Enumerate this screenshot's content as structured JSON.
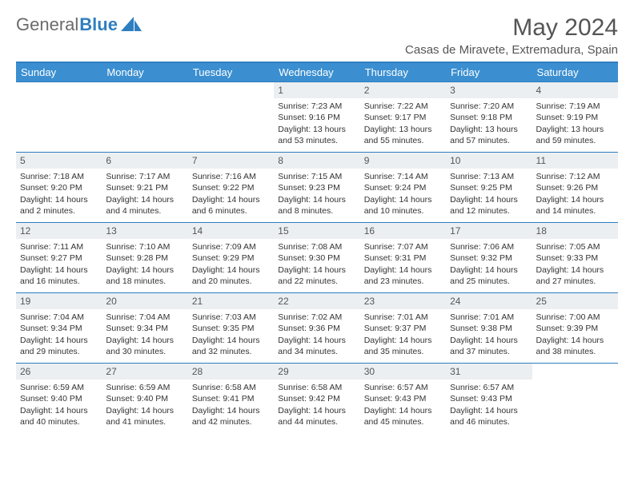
{
  "brand": {
    "part1": "General",
    "part2": "Blue"
  },
  "title": {
    "month": "May 2024",
    "location": "Casas de Miravete, Extremadura, Spain"
  },
  "colors": {
    "header_bg": "#3b8fd0",
    "border": "#2f7ec0",
    "daynum_bg": "#eceff2",
    "text": "#333333",
    "logo_gray": "#6b6b6b"
  },
  "weekdays": [
    "Sunday",
    "Monday",
    "Tuesday",
    "Wednesday",
    "Thursday",
    "Friday",
    "Saturday"
  ],
  "weeks": [
    [
      null,
      null,
      null,
      {
        "d": "1",
        "sr": "7:23 AM",
        "ss": "9:16 PM",
        "dl": "13 hours and 53 minutes."
      },
      {
        "d": "2",
        "sr": "7:22 AM",
        "ss": "9:17 PM",
        "dl": "13 hours and 55 minutes."
      },
      {
        "d": "3",
        "sr": "7:20 AM",
        "ss": "9:18 PM",
        "dl": "13 hours and 57 minutes."
      },
      {
        "d": "4",
        "sr": "7:19 AM",
        "ss": "9:19 PM",
        "dl": "13 hours and 59 minutes."
      }
    ],
    [
      {
        "d": "5",
        "sr": "7:18 AM",
        "ss": "9:20 PM",
        "dl": "14 hours and 2 minutes."
      },
      {
        "d": "6",
        "sr": "7:17 AM",
        "ss": "9:21 PM",
        "dl": "14 hours and 4 minutes."
      },
      {
        "d": "7",
        "sr": "7:16 AM",
        "ss": "9:22 PM",
        "dl": "14 hours and 6 minutes."
      },
      {
        "d": "8",
        "sr": "7:15 AM",
        "ss": "9:23 PM",
        "dl": "14 hours and 8 minutes."
      },
      {
        "d": "9",
        "sr": "7:14 AM",
        "ss": "9:24 PM",
        "dl": "14 hours and 10 minutes."
      },
      {
        "d": "10",
        "sr": "7:13 AM",
        "ss": "9:25 PM",
        "dl": "14 hours and 12 minutes."
      },
      {
        "d": "11",
        "sr": "7:12 AM",
        "ss": "9:26 PM",
        "dl": "14 hours and 14 minutes."
      }
    ],
    [
      {
        "d": "12",
        "sr": "7:11 AM",
        "ss": "9:27 PM",
        "dl": "14 hours and 16 minutes."
      },
      {
        "d": "13",
        "sr": "7:10 AM",
        "ss": "9:28 PM",
        "dl": "14 hours and 18 minutes."
      },
      {
        "d": "14",
        "sr": "7:09 AM",
        "ss": "9:29 PM",
        "dl": "14 hours and 20 minutes."
      },
      {
        "d": "15",
        "sr": "7:08 AM",
        "ss": "9:30 PM",
        "dl": "14 hours and 22 minutes."
      },
      {
        "d": "16",
        "sr": "7:07 AM",
        "ss": "9:31 PM",
        "dl": "14 hours and 23 minutes."
      },
      {
        "d": "17",
        "sr": "7:06 AM",
        "ss": "9:32 PM",
        "dl": "14 hours and 25 minutes."
      },
      {
        "d": "18",
        "sr": "7:05 AM",
        "ss": "9:33 PM",
        "dl": "14 hours and 27 minutes."
      }
    ],
    [
      {
        "d": "19",
        "sr": "7:04 AM",
        "ss": "9:34 PM",
        "dl": "14 hours and 29 minutes."
      },
      {
        "d": "20",
        "sr": "7:04 AM",
        "ss": "9:34 PM",
        "dl": "14 hours and 30 minutes."
      },
      {
        "d": "21",
        "sr": "7:03 AM",
        "ss": "9:35 PM",
        "dl": "14 hours and 32 minutes."
      },
      {
        "d": "22",
        "sr": "7:02 AM",
        "ss": "9:36 PM",
        "dl": "14 hours and 34 minutes."
      },
      {
        "d": "23",
        "sr": "7:01 AM",
        "ss": "9:37 PM",
        "dl": "14 hours and 35 minutes."
      },
      {
        "d": "24",
        "sr": "7:01 AM",
        "ss": "9:38 PM",
        "dl": "14 hours and 37 minutes."
      },
      {
        "d": "25",
        "sr": "7:00 AM",
        "ss": "9:39 PM",
        "dl": "14 hours and 38 minutes."
      }
    ],
    [
      {
        "d": "26",
        "sr": "6:59 AM",
        "ss": "9:40 PM",
        "dl": "14 hours and 40 minutes."
      },
      {
        "d": "27",
        "sr": "6:59 AM",
        "ss": "9:40 PM",
        "dl": "14 hours and 41 minutes."
      },
      {
        "d": "28",
        "sr": "6:58 AM",
        "ss": "9:41 PM",
        "dl": "14 hours and 42 minutes."
      },
      {
        "d": "29",
        "sr": "6:58 AM",
        "ss": "9:42 PM",
        "dl": "14 hours and 44 minutes."
      },
      {
        "d": "30",
        "sr": "6:57 AM",
        "ss": "9:43 PM",
        "dl": "14 hours and 45 minutes."
      },
      {
        "d": "31",
        "sr": "6:57 AM",
        "ss": "9:43 PM",
        "dl": "14 hours and 46 minutes."
      },
      null
    ]
  ]
}
